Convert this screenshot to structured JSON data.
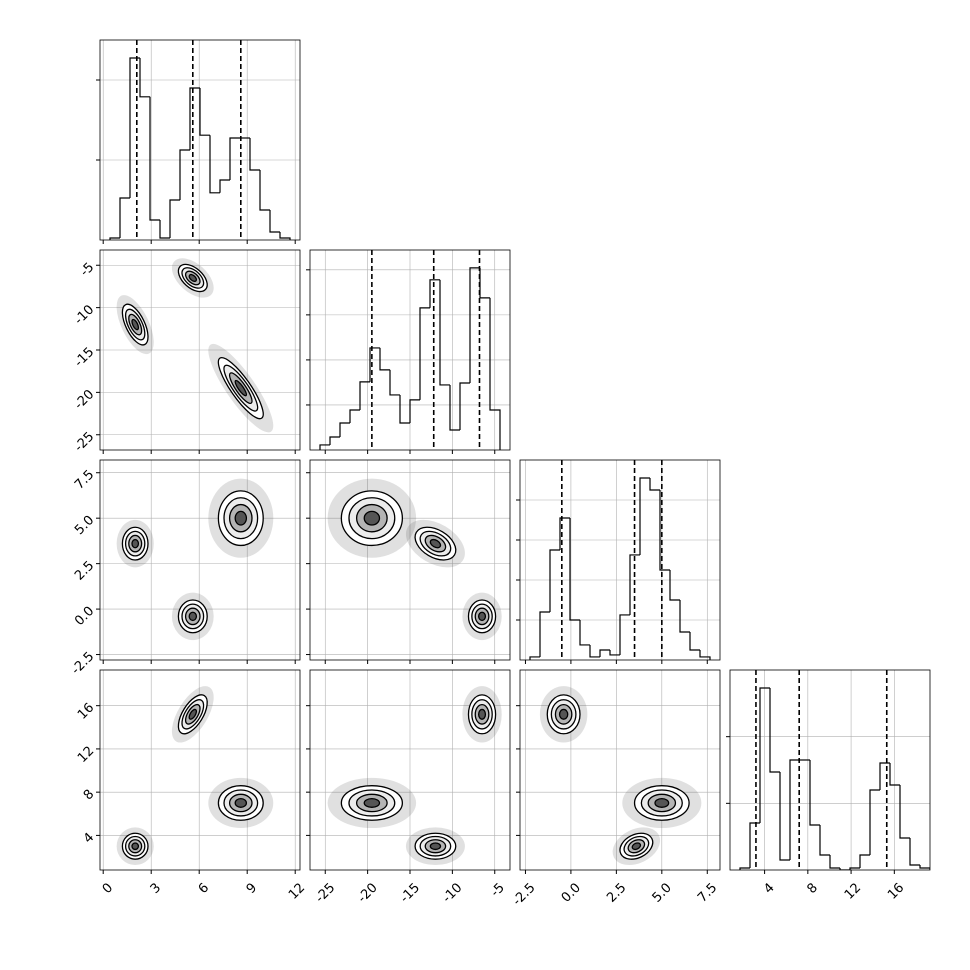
{
  "chart_data": {
    "type": "corner",
    "grid": true,
    "line_color": "#000000",
    "grid_color": "#b0b0b0",
    "density_color": "#555555",
    "parameters": [
      {
        "lim": [
          -0.2,
          12.3
        ],
        "ticks": [
          0,
          3,
          6,
          9,
          12
        ],
        "quantiles": [
          2.1,
          5.6,
          8.6
        ],
        "hist": {
          "ylim": [
            0,
            2500
          ],
          "yticks": [
            1000,
            2000
          ],
          "bins": [
            0.425,
            1.05,
            1.675,
            2.3,
            2.925,
            3.55,
            4.175,
            4.8,
            5.425,
            6.05,
            6.675,
            7.3,
            7.925,
            8.55,
            9.175,
            9.8,
            10.425,
            11.05,
            11.675
          ],
          "counts": [
            25,
            525,
            2275,
            1790,
            250,
            25,
            500,
            1125,
            1900,
            1310,
            590,
            750,
            1275,
            1275,
            875,
            375,
            100,
            25
          ]
        }
      },
      {
        "lim": [
          -26.8,
          -3.2
        ],
        "ticks": [
          -25,
          -20,
          -15,
          -10,
          -5
        ],
        "quantiles": [
          -19.5,
          -12.2,
          -6.8
        ],
        "hist": {
          "ylim": [
            0,
            2220
          ],
          "yticks": [
            500,
            1000,
            1500,
            2000
          ],
          "bins": [
            -25.62,
            -24.44,
            -23.26,
            -22.08,
            -20.9,
            -19.72,
            -18.54,
            -17.36,
            -16.18,
            -15.0,
            -13.82,
            -12.64,
            -11.46,
            -10.28,
            -9.1,
            -7.92,
            -6.74,
            -5.56,
            -4.38
          ],
          "counts": [
            56,
            144,
            300,
            444,
            756,
            1133,
            889,
            611,
            300,
            556,
            1578,
            1889,
            722,
            222,
            744,
            2022,
            1689,
            444
          ]
        }
      },
      {
        "lim": [
          -2.8,
          8.2
        ],
        "ticks": [
          -2.5,
          {
            "value": 0,
            "label": "0.0"
          },
          2.5,
          {
            "value": 5,
            "label": "5.0"
          },
          7.5
        ],
        "quantiles": [
          -0.5,
          3.5,
          5.0
        ],
        "hist": {
          "ylim": [
            0,
            2500
          ],
          "yticks": [
            500,
            1000,
            1500,
            2000
          ],
          "bins": [
            -2.25,
            -1.7,
            -1.15,
            -0.6,
            -0.05,
            0.5,
            1.05,
            1.6,
            2.15,
            2.7,
            3.25,
            3.8,
            4.35,
            4.9,
            5.45,
            6.0,
            6.55,
            7.1,
            7.65
          ],
          "counts": [
            38,
            600,
            1375,
            1775,
            500,
            188,
            38,
            125,
            63,
            563,
            1313,
            2275,
            2125,
            1125,
            750,
            350,
            125,
            38
          ]
        }
      },
      {
        "lim": [
          0.8,
          19.3
        ],
        "ticks": [
          4,
          8,
          12,
          16
        ],
        "quantiles": [
          3.2,
          7.2,
          15.3
        ],
        "hist": {
          "ylim": [
            0,
            3000
          ],
          "yticks": [
            1000,
            2000
          ],
          "bins": [
            1.725,
            2.65,
            3.575,
            4.5,
            5.425,
            6.35,
            7.275,
            8.2,
            9.125,
            10.05,
            10.975,
            11.9,
            12.825,
            13.75,
            14.675,
            15.6,
            16.525,
            17.45,
            18.375,
            19.3
          ],
          "counts": [
            30,
            705,
            2730,
            1470,
            150,
            1650,
            1650,
            675,
            225,
            30,
            0,
            30,
            225,
            1200,
            1605,
            1275,
            480,
            75,
            30
          ]
        }
      }
    ],
    "modes": [
      {
        "mean": [
          2.0,
          -12.0,
          3.6,
          3.0
        ],
        "sd": [
          0.4,
          1.2,
          0.45,
          0.6
        ],
        "rho": [
          -0.6,
          0,
          -0.4,
          0,
          0,
          0.3
        ]
      },
      {
        "mean": [
          5.6,
          -6.5,
          -0.4,
          15.2
        ],
        "sd": [
          0.45,
          0.8,
          0.45,
          0.9
        ],
        "rho": [
          -0.5,
          0,
          0,
          0.6,
          0,
          0
        ]
      },
      {
        "mean": [
          8.6,
          -19.5,
          5.0,
          7.0
        ],
        "sd": [
          0.7,
          1.8,
          0.75,
          0.8
        ],
        "rho": [
          -0.85,
          0,
          0,
          0,
          0,
          0
        ]
      }
    ]
  }
}
